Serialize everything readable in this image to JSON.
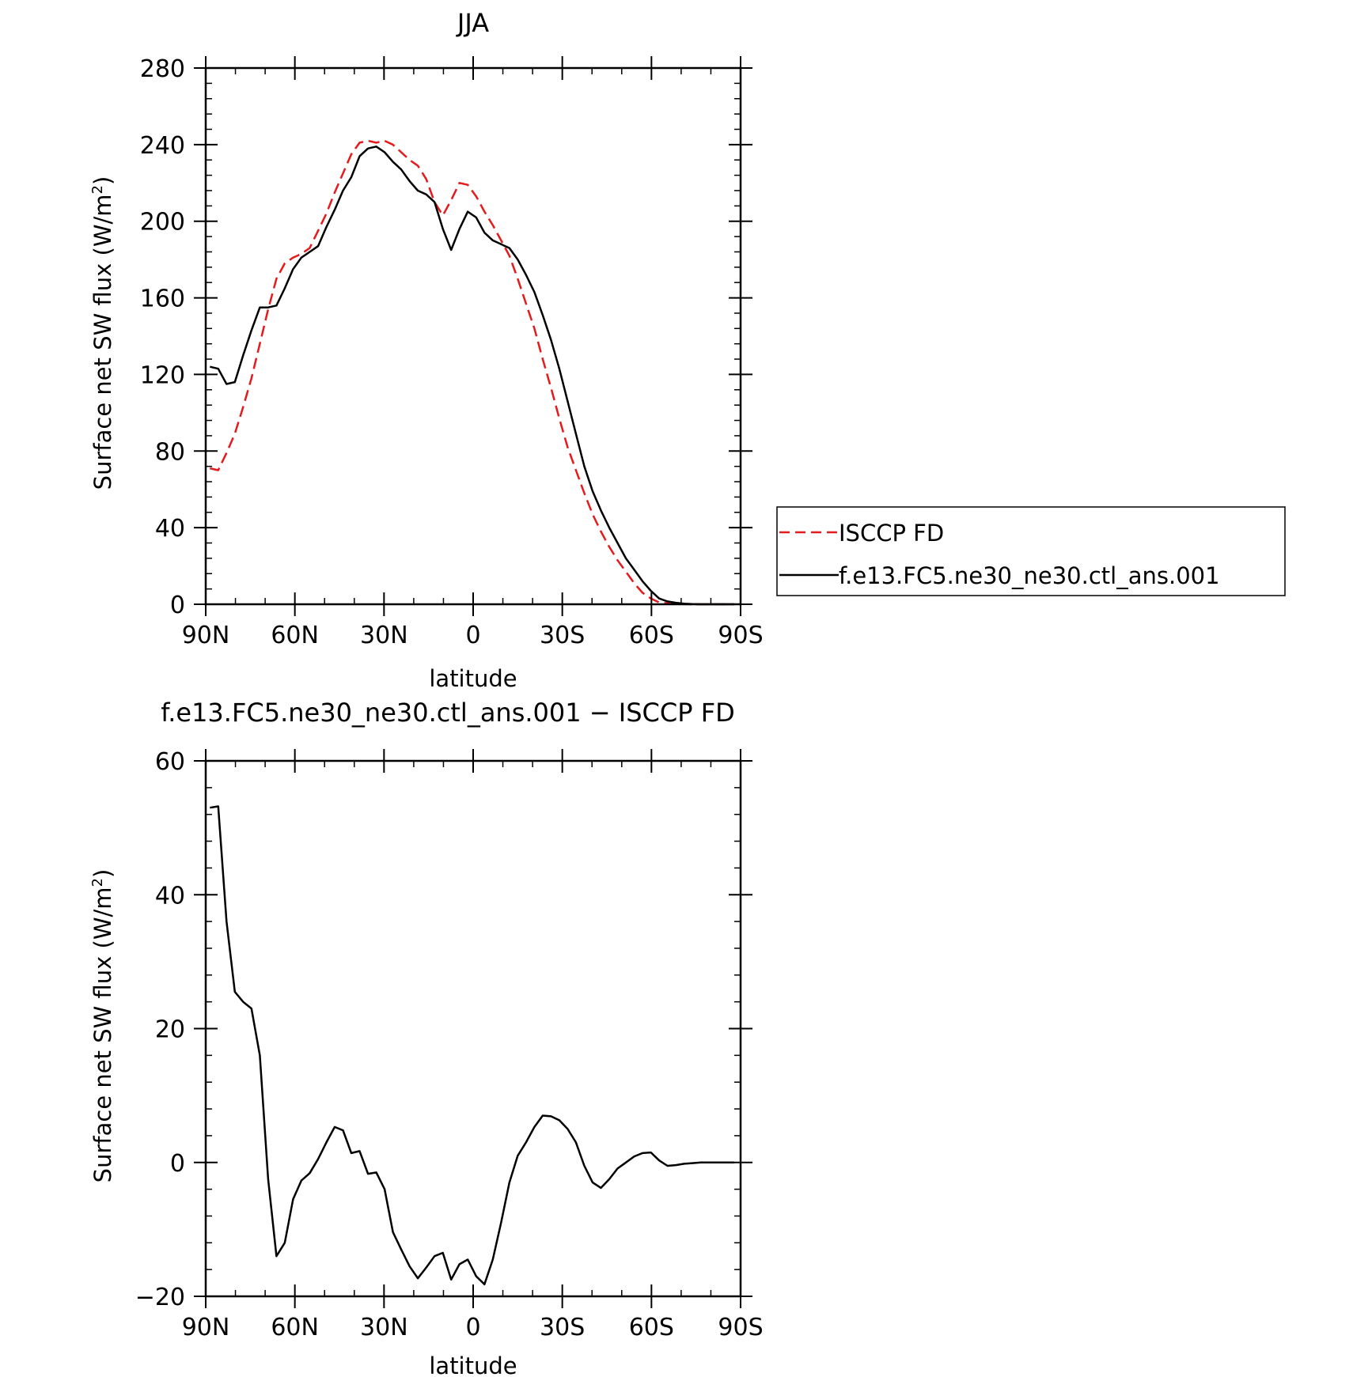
{
  "chart_data": [
    {
      "type": "line",
      "title": "JJA",
      "xlabel": "latitude",
      "ylabel": "Surface net SW flux (W/m",
      "ylabel_sup": "2",
      "ylabel_close": ")",
      "xlim": [
        90,
        -90
      ],
      "ylim": [
        0,
        280
      ],
      "xticks": [
        90,
        60,
        30,
        0,
        -30,
        -60,
        -90
      ],
      "xtick_labels": [
        "90N",
        "60N",
        "30N",
        "0",
        "30S",
        "60S",
        "90S"
      ],
      "yticks": [
        0,
        40,
        80,
        120,
        160,
        200,
        240,
        280
      ],
      "ytick_labels": [
        "0",
        "40",
        "80",
        "120",
        "160",
        "200",
        "240",
        "280"
      ],
      "grid": false,
      "legend_position": "right",
      "series": [
        {
          "name": "ISCCP FD",
          "color": "#e41a1c",
          "dash": "dashed",
          "x": [
            88.6,
            85.8,
            83.0,
            80.2,
            77.4,
            74.6,
            71.8,
            69.0,
            66.2,
            63.4,
            60.6,
            57.8,
            55.0,
            52.2,
            49.4,
            46.6,
            43.8,
            41.0,
            38.2,
            35.4,
            32.6,
            29.8,
            27.0,
            24.2,
            21.4,
            18.6,
            15.8,
            13.0,
            10.2,
            7.4,
            4.6,
            1.8,
            -1.0,
            -3.8,
            -6.6,
            -9.4,
            -12.2,
            -15.0,
            -17.8,
            -20.6,
            -23.4,
            -26.2,
            -29.0,
            -31.8,
            -34.6,
            -37.4,
            -40.2,
            -43.0,
            -45.8,
            -48.6,
            -51.4,
            -54.2,
            -57.0,
            -59.8,
            -62.6,
            -65.4,
            -68.2,
            -71.0,
            -73.8,
            -76.6,
            -79.4,
            -82.2,
            -85.0,
            -87.8
          ],
          "y": [
            71,
            70,
            79,
            89,
            103,
            118,
            136,
            154,
            170,
            178,
            181,
            183,
            186,
            195,
            204,
            215,
            225,
            235,
            241,
            242,
            241,
            242,
            240,
            236,
            232,
            229,
            222,
            210,
            203,
            211,
            220,
            219,
            213,
            205,
            198,
            190,
            182,
            170,
            157,
            144,
            128,
            113,
            97,
            82,
            70,
            58,
            47,
            38,
            30,
            23,
            17,
            11,
            6,
            3,
            1,
            0.5,
            0.3,
            0.1,
            0,
            0,
            0,
            0,
            0,
            0
          ]
        },
        {
          "name": "f.e13.FC5.ne30_ne30.ctl_ans.001",
          "color": "#000000",
          "dash": "solid",
          "x": [
            88.6,
            85.8,
            83.0,
            80.2,
            77.4,
            74.6,
            71.8,
            69.0,
            66.2,
            63.4,
            60.6,
            57.8,
            55.0,
            52.2,
            49.4,
            46.6,
            43.8,
            41.0,
            38.2,
            35.4,
            32.6,
            29.8,
            27.0,
            24.2,
            21.4,
            18.6,
            15.8,
            13.0,
            10.2,
            7.4,
            4.6,
            1.8,
            -1.0,
            -3.8,
            -6.6,
            -9.4,
            -12.2,
            -15.0,
            -17.8,
            -20.6,
            -23.4,
            -26.2,
            -29.0,
            -31.8,
            -34.6,
            -37.4,
            -40.2,
            -43.0,
            -45.8,
            -48.6,
            -51.4,
            -54.2,
            -57.0,
            -59.8,
            -62.6,
            -65.4,
            -68.2,
            -71.0,
            -73.8,
            -76.6,
            -79.4,
            -82.2,
            -85.0,
            -87.8
          ],
          "y": [
            124,
            123,
            115,
            116,
            130,
            143,
            155,
            155,
            156,
            165,
            175,
            181,
            184,
            187,
            197,
            206,
            216,
            223,
            234,
            238,
            239,
            236,
            231,
            227,
            221,
            216,
            214,
            210,
            196,
            185,
            196,
            205,
            202,
            194,
            190,
            188,
            186,
            180,
            172,
            163,
            151,
            138,
            123,
            106,
            89,
            72,
            59,
            49,
            40,
            32,
            24,
            18,
            12,
            7,
            3,
            1.5,
            0.8,
            0.3,
            0.1,
            0,
            0,
            0,
            0,
            0
          ]
        }
      ]
    },
    {
      "type": "line",
      "title": "f.e13.FC5.ne30_ne30.ctl_ans.001 − ISCCP FD",
      "xlabel": "latitude",
      "ylabel": "Surface net SW flux (W/m",
      "ylabel_sup": "2",
      "ylabel_close": ")",
      "xlim": [
        90,
        -90
      ],
      "ylim": [
        -20,
        60
      ],
      "xticks": [
        90,
        60,
        30,
        0,
        -30,
        -60,
        -90
      ],
      "xtick_labels": [
        "90N",
        "60N",
        "30N",
        "0",
        "30S",
        "60S",
        "90S"
      ],
      "yticks": [
        -20,
        0,
        20,
        40,
        60
      ],
      "ytick_labels": [
        "−20",
        "0",
        "20",
        "40",
        "60"
      ],
      "grid": false,
      "series": [
        {
          "color": "#000000",
          "dash": "solid",
          "x": [
            88.6,
            85.8,
            83.0,
            80.2,
            77.4,
            74.6,
            71.8,
            69.0,
            66.2,
            63.4,
            60.6,
            57.8,
            55.0,
            52.2,
            49.4,
            46.6,
            43.8,
            41.0,
            38.2,
            35.4,
            32.6,
            29.8,
            27.0,
            24.2,
            21.4,
            18.6,
            15.8,
            13.0,
            10.2,
            7.4,
            4.6,
            1.8,
            -1.0,
            -3.8,
            -6.6,
            -9.4,
            -12.2,
            -15.0,
            -17.8,
            -20.6,
            -23.4,
            -26.2,
            -29.0,
            -31.8,
            -34.6,
            -37.4,
            -40.2,
            -43.0,
            -45.8,
            -48.6,
            -51.4,
            -54.2,
            -57.0,
            -59.8,
            -62.6,
            -65.4,
            -68.2,
            -71.0,
            -73.8,
            -76.6,
            -79.4,
            -82.2,
            -85.0,
            -87.8
          ],
          "y": [
            53,
            53.2,
            36,
            25.5,
            24,
            23,
            16,
            -2.5,
            -14,
            -12,
            -5.5,
            -2.7,
            -1.6,
            0.5,
            3,
            5.3,
            4.8,
            1.4,
            1.7,
            -1.7,
            -1.5,
            -4,
            -10.4,
            -13,
            -15.5,
            -17.3,
            -15.7,
            -14,
            -13.5,
            -17.5,
            -15.2,
            -14.5,
            -17,
            -18.2,
            -14.5,
            -9,
            -3,
            1,
            3,
            5.3,
            7,
            6.9,
            6.3,
            5,
            3,
            -0.5,
            -3,
            -3.8,
            -2.5,
            -0.9,
            0,
            0.9,
            1.4,
            1.5,
            0.3,
            -0.5,
            -0.4,
            -0.2,
            -0.1,
            0,
            0,
            0,
            0,
            0
          ]
        }
      ]
    }
  ]
}
